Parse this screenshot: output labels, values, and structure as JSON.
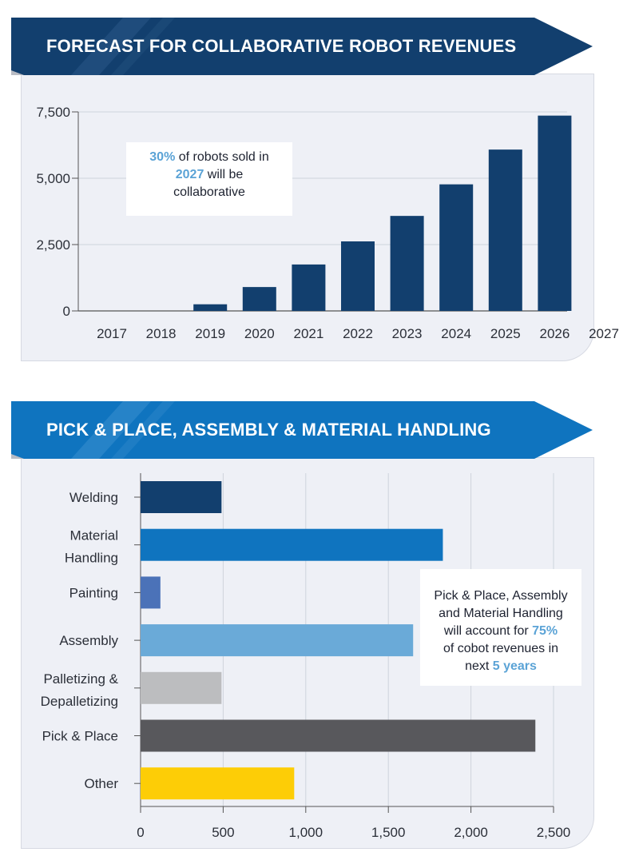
{
  "colors": {
    "dark_navy": "#123f6e",
    "blue": "#0f74bf",
    "accent": "#5ba3d6",
    "panel_bg": "#eef0f6"
  },
  "chart1": {
    "banner_title": "FORECAST FOR COLLABORATIVE ROBOT REVENUES",
    "callout": {
      "pct": "30%",
      "text1": " of robots sold in",
      "year": "2027",
      "text2": " will be",
      "text3": "collaborative"
    }
  },
  "chart2": {
    "banner_title": "PICK & PLACE, ASSEMBLY & MATERIAL HANDLING",
    "callout": {
      "line1": "Pick & Place, Assembly",
      "line2": "and Material Handling",
      "line3a": "will account for ",
      "pct": "75%",
      "line4": "of cobot revenues in",
      "line5a": "next ",
      "years": "5 years"
    }
  },
  "chart_data": [
    {
      "type": "bar",
      "title": "FORECAST FOR COLLABORATIVE ROBOT REVENUES",
      "categories": [
        "2017",
        "2018",
        "2019",
        "2020",
        "2021",
        "2022",
        "2023",
        "2024",
        "2025",
        "2026",
        "2027"
      ],
      "values": [
        0,
        0,
        250,
        900,
        1750,
        2620,
        3580,
        4770,
        6080,
        7360,
        0
      ],
      "ylim": [
        0,
        7500
      ],
      "yticks": [
        0,
        2500,
        5000,
        7500
      ],
      "ytick_labels": [
        "0",
        "2,500",
        "5,000",
        "7,500"
      ],
      "grid": true,
      "color": "#123f6e"
    },
    {
      "type": "bar",
      "orientation": "horizontal",
      "title": "PICK & PLACE, ASSEMBLY & MATERIAL HANDLING",
      "categories": [
        {
          "lines": [
            "Welding"
          ],
          "value": 490,
          "color": "#123f6e"
        },
        {
          "lines": [
            "Material",
            "Handling"
          ],
          "value": 1830,
          "color": "#0f74bf"
        },
        {
          "lines": [
            "Painting"
          ],
          "value": 120,
          "color": "#4b72b8"
        },
        {
          "lines": [
            "Assembly"
          ],
          "value": 1650,
          "color": "#6aaad8"
        },
        {
          "lines": [
            "Palletizing &",
            "Depalletizing"
          ],
          "value": 490,
          "color": "#bcbdbf"
        },
        {
          "lines": [
            "Pick & Place"
          ],
          "value": 2390,
          "color": "#58585c"
        },
        {
          "lines": [
            "Other"
          ],
          "value": 930,
          "color": "#fdcd06"
        }
      ],
      "xlim": [
        0,
        2500
      ],
      "xticks": [
        0,
        500,
        1000,
        1500,
        2000,
        2500
      ],
      "xtick_labels": [
        "0",
        "500",
        "1,000",
        "1,500",
        "2,000",
        "2,500"
      ],
      "grid": true
    }
  ]
}
